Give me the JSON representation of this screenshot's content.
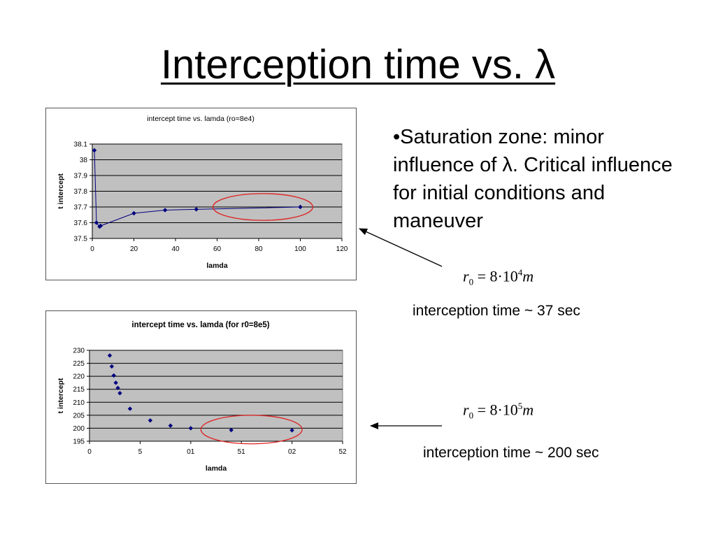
{
  "slide": {
    "title": "Interception time vs. λ",
    "bullet_text": "•Saturation zone: minor influence of λ. Critical influence for initial conditions and maneuver"
  },
  "annotations": [
    {
      "eq_var": "r",
      "eq_sub": "0",
      "eq_mid": "= 8·10",
      "eq_exp": "4",
      "eq_unit": "m",
      "note": "interception time ~ 37 sec"
    },
    {
      "eq_var": "r",
      "eq_sub": "0",
      "eq_mid": "= 8·10",
      "eq_exp": "5",
      "eq_unit": "m",
      "note": "interception time ~ 200 sec"
    }
  ],
  "colors": {
    "plot_bg": "#c0c0c0",
    "series": "#000080",
    "highlight": "#e02020",
    "grid": "#000000"
  },
  "chart_data": [
    {
      "type": "line",
      "title": "intercept time vs. lamda (ro=8e4)",
      "title_bold": false,
      "xlabel": "lamda",
      "ylabel": "t intercept",
      "xlim": [
        0,
        120
      ],
      "ylim": [
        37.5,
        38.1
      ],
      "x_ticks": [
        "0",
        "20",
        "40",
        "60",
        "80",
        "100",
        "120"
      ],
      "y_ticks": [
        "37.5",
        "37.6",
        "37.7",
        "37.8",
        "37.9",
        "38",
        "38.1"
      ],
      "grid": true,
      "series": [
        {
          "x": [
            1,
            2,
            3.5,
            4,
            20,
            35,
            50,
            100
          ],
          "y": [
            38.06,
            37.6,
            37.575,
            37.58,
            37.66,
            37.68,
            37.685,
            37.7
          ]
        }
      ],
      "highlight": {
        "cx": 82,
        "cy": 37.7,
        "rx": 24,
        "ry": 0.085
      }
    },
    {
      "type": "scatter",
      "title": "intercept time vs. lamda (for r0=8e5)",
      "title_bold": true,
      "xlabel": "lamda",
      "ylabel": "t intercept",
      "xlim": [
        0,
        25
      ],
      "ylim": [
        195,
        230
      ],
      "x_ticks": [
        "0",
        "5",
        "01",
        "51",
        "02",
        "52"
      ],
      "y_ticks": [
        "195",
        "200",
        "205",
        "210",
        "215",
        "220",
        "225",
        "230"
      ],
      "grid": true,
      "series": [
        {
          "x": [
            2,
            2.2,
            2.4,
            2.6,
            2.8,
            3,
            4,
            6,
            8,
            10,
            14,
            20
          ],
          "y": [
            228,
            223.8,
            220.3,
            217.5,
            215.5,
            213.5,
            207.5,
            203,
            201,
            200,
            199.3,
            199.2
          ]
        }
      ],
      "highlight": {
        "cx": 16,
        "cy": 199.5,
        "rx": 5,
        "ry": 5.5
      }
    }
  ]
}
